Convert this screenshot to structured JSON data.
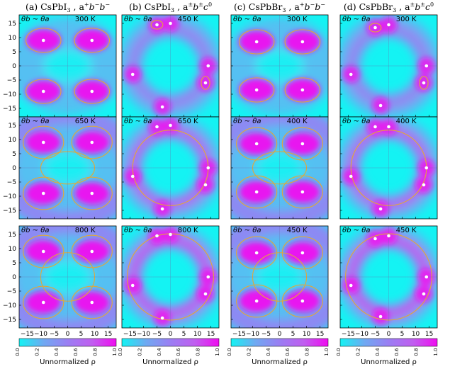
{
  "chart_data": {
    "type": "heatmap",
    "columns": [
      {
        "title": "(a) CsPbI₃ , a⁺b⁻b⁻",
        "title_parts": [
          "(a) CsPbI",
          "3",
          " , a",
          "+",
          "b",
          "−",
          "b",
          "−"
        ]
      },
      {
        "title": "(b) CsPbI₃ , a±b±c⁰",
        "title_parts": [
          "(b) CsPbI",
          "3",
          " , a",
          "±",
          "b",
          "±",
          "c",
          "0"
        ]
      },
      {
        "title": "(c) CsPbBr₃ , a⁺b⁻b⁻",
        "title_parts": [
          "(c) CsPbBr",
          "3",
          " , a",
          "+",
          "b",
          "−",
          "b",
          "−"
        ]
      },
      {
        "title": "(d) CsPbBr₃ , a±b±c⁰",
        "title_parts": [
          "(d) CsPbBr",
          "3",
          " , a",
          "±",
          "b",
          "±",
          "c",
          "0"
        ]
      }
    ],
    "panel_label": "θb ~ θa",
    "panels": [
      {
        "row": 0,
        "col": 0,
        "temperature": "300 K",
        "pattern": "four-corner",
        "points": [
          [
            -9,
            9
          ],
          [
            9,
            9
          ],
          [
            -9,
            -9
          ],
          [
            9,
            -9
          ]
        ]
      },
      {
        "row": 0,
        "col": 1,
        "temperature": "450 K",
        "pattern": "six-fold",
        "points": [
          [
            -5,
            14.5
          ],
          [
            0,
            15
          ],
          [
            14,
            0
          ],
          [
            13,
            -6
          ],
          [
            -14,
            -3
          ],
          [
            -3,
            -14.5
          ]
        ]
      },
      {
        "row": 0,
        "col": 2,
        "temperature": "300 K",
        "pattern": "four-corner",
        "points": [
          [
            -8.5,
            8.5
          ],
          [
            8.5,
            8.5
          ],
          [
            -8.5,
            -8.5
          ],
          [
            8.5,
            -8.5
          ]
        ]
      },
      {
        "row": 0,
        "col": 3,
        "temperature": "300 K",
        "pattern": "six-fold",
        "points": [
          [
            -5,
            13.5
          ],
          [
            0,
            14.5
          ],
          [
            14,
            0
          ],
          [
            13,
            -6
          ],
          [
            -14,
            -3
          ],
          [
            -3,
            -14
          ]
        ]
      },
      {
        "row": 1,
        "col": 0,
        "temperature": "650 K",
        "pattern": "connected-four",
        "points": [
          [
            -9,
            9
          ],
          [
            9,
            9
          ],
          [
            -9,
            -9
          ],
          [
            9,
            -9
          ]
        ]
      },
      {
        "row": 1,
        "col": 1,
        "temperature": "650 K",
        "pattern": "six-fold-ring",
        "points": [
          [
            -5,
            14.5
          ],
          [
            0,
            15
          ],
          [
            14,
            0
          ],
          [
            13,
            -6
          ],
          [
            -14,
            -3
          ],
          [
            -3,
            -14.5
          ]
        ]
      },
      {
        "row": 1,
        "col": 2,
        "temperature": "400 K",
        "pattern": "connected-four",
        "points": [
          [
            -8.5,
            8.5
          ],
          [
            8.5,
            8.5
          ],
          [
            -8.5,
            -8.5
          ],
          [
            8.5,
            -8.5
          ]
        ]
      },
      {
        "row": 1,
        "col": 3,
        "temperature": "400 K",
        "pattern": "six-fold-ring",
        "points": [
          [
            -5,
            14.5
          ],
          [
            0,
            14.5
          ],
          [
            14,
            0
          ],
          [
            13,
            -6
          ],
          [
            -14,
            -3
          ],
          [
            -3,
            -14.5
          ]
        ]
      },
      {
        "row": 2,
        "col": 0,
        "temperature": "800 K",
        "pattern": "ring-four",
        "points": [
          [
            -9,
            9
          ],
          [
            9,
            9
          ],
          [
            -9,
            -9
          ],
          [
            9,
            -9
          ]
        ]
      },
      {
        "row": 2,
        "col": 1,
        "temperature": "800 K",
        "pattern": "full-ring",
        "points": [
          [
            -5,
            14.5
          ],
          [
            0,
            15
          ],
          [
            14,
            0
          ],
          [
            13,
            -6
          ],
          [
            -14,
            -3
          ],
          [
            -3,
            -14.5
          ]
        ]
      },
      {
        "row": 2,
        "col": 2,
        "temperature": "450 K",
        "pattern": "ring-four",
        "points": [
          [
            -8.5,
            8.5
          ],
          [
            8.5,
            8.5
          ],
          [
            -8.5,
            -8.5
          ],
          [
            8.5,
            -8.5
          ]
        ]
      },
      {
        "row": 2,
        "col": 3,
        "temperature": "450 K",
        "pattern": "full-ring",
        "points": [
          [
            -5,
            13.5
          ],
          [
            0,
            14.5
          ],
          [
            14,
            0
          ],
          [
            13,
            -6
          ],
          [
            -14,
            -3
          ],
          [
            -3,
            -14
          ]
        ]
      }
    ],
    "xlim": [
      -18,
      18
    ],
    "ylim": [
      -18,
      18
    ],
    "x_ticks": [
      -15,
      -10,
      -5,
      0,
      5,
      10,
      15
    ],
    "x_tick_labels": [
      "−15",
      "−10",
      "−5",
      "0",
      "5",
      "10",
      "15"
    ],
    "y_ticks": [
      15,
      10,
      5,
      0,
      -5,
      -10,
      -15
    ],
    "y_tick_labels": [
      "15",
      "10",
      "5",
      "0",
      "−5",
      "−10",
      "−15"
    ],
    "colorbar": {
      "label": "Unnormalized ρ",
      "ticks": [
        "0.0",
        "0.2",
        "0.4",
        "0.6",
        "0.8",
        "1.0"
      ],
      "colors": [
        "#14f3f3",
        "#6fa9f2",
        "#9a7ef3",
        "#c05ef0",
        "#f00cf0"
      ]
    },
    "contour_color": "#e0a83a",
    "marker_color": "#ffffff",
    "grid": false
  }
}
